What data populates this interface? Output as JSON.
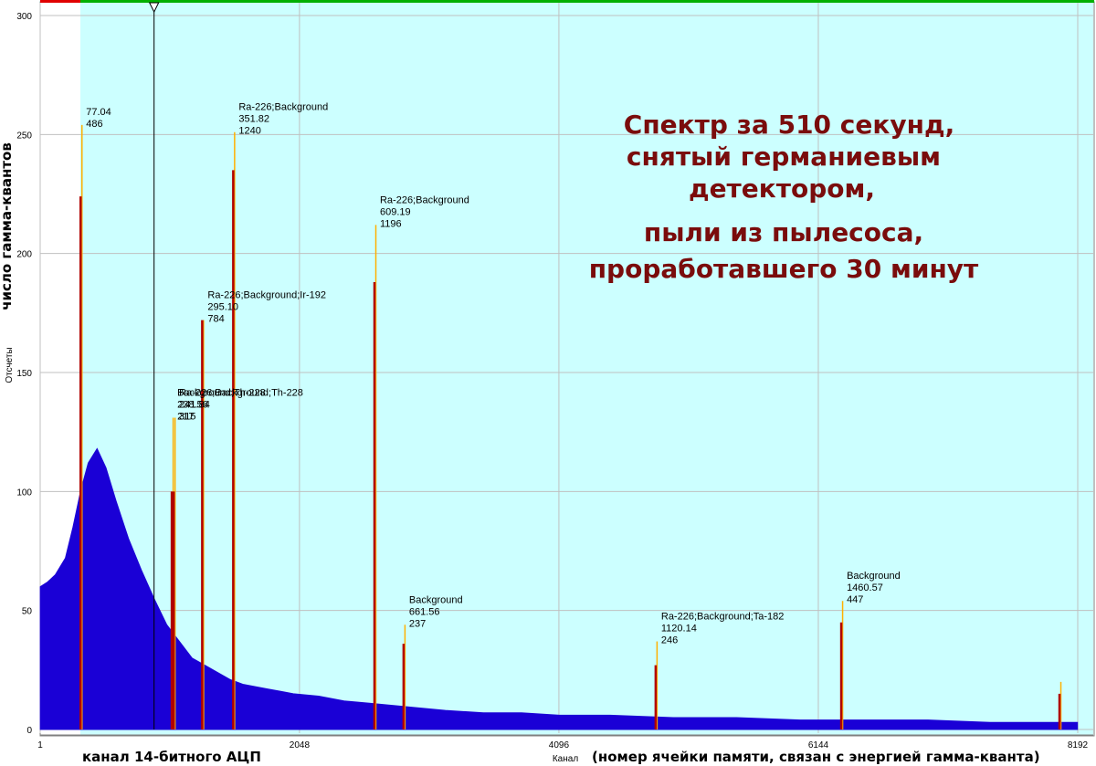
{
  "chart_data": {
    "type": "bar",
    "title": "",
    "xlabel": "Канал",
    "ylabel": "Отсчеты",
    "xlim": [
      1,
      8192
    ],
    "ylim": [
      0,
      300
    ],
    "x_ticks": [
      "1",
      "2048",
      "4096",
      "6144",
      "8192"
    ],
    "x_tick_values": [
      1,
      2048,
      4096,
      6144,
      8192
    ],
    "y_ticks": [
      "0",
      "50",
      "100",
      "150",
      "200",
      "250",
      "300"
    ],
    "y_tick_values": [
      0,
      50,
      100,
      150,
      200,
      250,
      300
    ],
    "grid": true,
    "background_color": "#ccffff",
    "series": [
      {
        "name": "",
        "color": "#1a00d6",
        "x": [
          2,
          60,
          120,
          200,
          260,
          320,
          380,
          450,
          520,
          600,
          700,
          800,
          900,
          1000,
          1100,
          1200,
          1300,
          1400,
          1500,
          1600,
          1700,
          1800,
          1900,
          2000,
          2200,
          2400,
          2600,
          2800,
          3000,
          3200,
          3500,
          3800,
          4100,
          4500,
          5000,
          5500,
          6000,
          6500,
          7000,
          7500,
          8000,
          8190
        ],
        "y": [
          60,
          62,
          65,
          72,
          85,
          100,
          112,
          118,
          110,
          96,
          80,
          67,
          55,
          44,
          37,
          30,
          27,
          24,
          21,
          19,
          18,
          17,
          16,
          15,
          14,
          12,
          11,
          10,
          9,
          8,
          7,
          7,
          6,
          6,
          5,
          5,
          4,
          4,
          4,
          3,
          3,
          3
        ]
      }
    ],
    "peaks": [
      {
        "x": 320,
        "height": 224,
        "marker": 254,
        "labels": [
          "77.04",
          "486"
        ]
      },
      {
        "x": 1040,
        "height": 100,
        "marker": 131,
        "labels": [
          "Background;Th-228",
          "238.56",
          "217"
        ]
      },
      {
        "x": 1055,
        "height": 100,
        "marker": 131,
        "labels": [
          "Ra-226;Background;Th-228",
          "241.84",
          "315"
        ]
      },
      {
        "x": 1280,
        "height": 172,
        "marker": 172,
        "labels": [
          "Ra-226;Background;Ir-192",
          "295.10",
          "784"
        ]
      },
      {
        "x": 1525,
        "height": 235,
        "marker": 251,
        "labels": [
          "Ra-226;Background",
          "351.82",
          "1240"
        ]
      },
      {
        "x": 2640,
        "height": 188,
        "marker": 212,
        "labels": [
          "Ra-226;Background",
          "609.19",
          "1196"
        ]
      },
      {
        "x": 2870,
        "height": 36,
        "marker": 44,
        "labels": [
          "Background",
          "661.56",
          "237"
        ]
      },
      {
        "x": 4860,
        "height": 27,
        "marker": 37,
        "labels": [
          "Ra-226;Background;Ta-182",
          "1120.14",
          "246"
        ]
      },
      {
        "x": 6325,
        "height": 45,
        "marker": 54,
        "labels": [
          "Background",
          "1460.57",
          "447"
        ]
      },
      {
        "x": 8048,
        "height": 15,
        "marker": 20,
        "labels": []
      }
    ],
    "cursor_x": 900
  },
  "annotations": {
    "y_axis_russian": "число гамма-квантов",
    "x_axis_russian_left": "канал 14-битного АЦП",
    "x_axis_russian_right": "(номер ячейки памяти, связан с энергией гамма-кванта)",
    "overlay_lines": [
      "Спектр за 510 секунд,",
      "снятый германиевым",
      "детектором,",
      "пыли из пылесоса,",
      "проработавшего 30 минут"
    ]
  },
  "colors": {
    "background": "#ccffff",
    "spectrum": "#1a00d6",
    "peak_line": "#b00000",
    "peak_marker": "#ffb000",
    "grid": "#c0c0c0",
    "overlay_text": "#7a0c0c",
    "top_bar_green": "#00b000",
    "top_bar_red": "#e00000"
  }
}
